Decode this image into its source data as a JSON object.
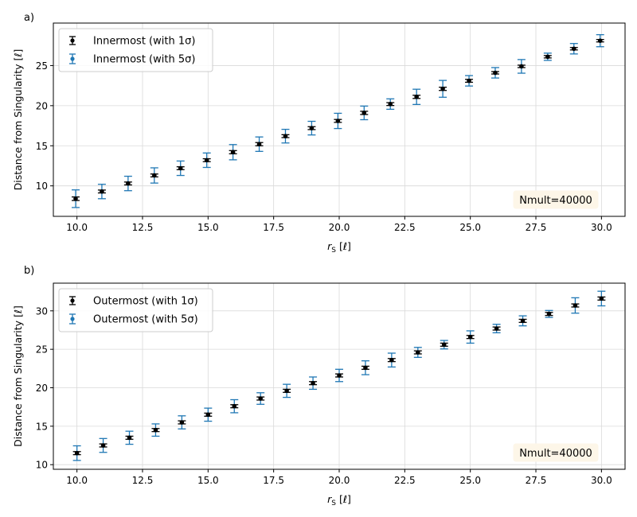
{
  "chart_data": [
    {
      "type": "scatter",
      "panel_label": "a)",
      "xlabel": "r_S [ℓ]",
      "ylabel": "Distance from Singularity [ℓ]",
      "xlim": [
        9.1,
        30.9
      ],
      "ylim": [
        6.2,
        30.3
      ],
      "xticks": [
        10.0,
        12.5,
        15.0,
        17.5,
        20.0,
        22.5,
        25.0,
        27.5,
        30.0
      ],
      "xtick_labels": [
        "10.0",
        "12.5",
        "15.0",
        "17.5",
        "20.0",
        "22.5",
        "25.0",
        "27.5",
        "30.0"
      ],
      "yticks": [
        10,
        15,
        20,
        25
      ],
      "ytick_labels": [
        "10",
        "15",
        "20",
        "25"
      ],
      "grid": true,
      "legend_position": "upper-left",
      "annotation": "Nmult=40000",
      "annotation_position": "lower-right",
      "x": [
        9.95,
        10.95,
        11.95,
        12.95,
        13.95,
        14.95,
        15.95,
        16.95,
        17.95,
        18.95,
        19.95,
        20.95,
        21.95,
        22.95,
        23.95,
        24.95,
        25.95,
        26.95,
        27.95,
        28.95,
        29.95
      ],
      "y": [
        8.4,
        9.3,
        10.3,
        11.3,
        12.2,
        13.2,
        14.2,
        15.2,
        16.2,
        17.2,
        18.1,
        19.1,
        20.2,
        21.1,
        22.1,
        23.1,
        24.1,
        24.9,
        26.1,
        27.1,
        28.1
      ],
      "series": [
        {
          "name": "Innermost (with 1σ)",
          "color": "#000000",
          "yerr": [
            0.22,
            0.18,
            0.18,
            0.18,
            0.18,
            0.18,
            0.2,
            0.2,
            0.18,
            0.18,
            0.18,
            0.2,
            0.18,
            0.2,
            0.2,
            0.18,
            0.15,
            0.15,
            0.15,
            0.15,
            0.15
          ]
        },
        {
          "name": "Innermost (with 5σ)",
          "color": "#1f77b4",
          "yerr": [
            1.1,
            0.9,
            0.9,
            0.95,
            0.9,
            0.9,
            0.95,
            0.9,
            0.85,
            0.85,
            0.95,
            0.85,
            0.65,
            0.95,
            1.05,
            0.65,
            0.65,
            0.85,
            0.45,
            0.65,
            0.75
          ]
        }
      ]
    },
    {
      "type": "scatter",
      "panel_label": "b)",
      "xlabel": "r_S [ℓ]",
      "ylabel": "Distance from Singularity [ℓ]",
      "xlim": [
        9.1,
        30.9
      ],
      "ylim": [
        9.4,
        33.6
      ],
      "xticks": [
        10.0,
        12.5,
        15.0,
        17.5,
        20.0,
        22.5,
        25.0,
        27.5,
        30.0
      ],
      "xtick_labels": [
        "10.0",
        "12.5",
        "15.0",
        "17.5",
        "20.0",
        "22.5",
        "25.0",
        "27.5",
        "30.0"
      ],
      "yticks": [
        10,
        15,
        20,
        25,
        30
      ],
      "ytick_labels": [
        "10",
        "15",
        "20",
        "25",
        "30"
      ],
      "grid": true,
      "legend_position": "upper-left",
      "annotation": "Nmult=40000",
      "annotation_position": "lower-right",
      "x": [
        10.0,
        11.0,
        12.0,
        13.0,
        14.0,
        15.0,
        16.0,
        17.0,
        18.0,
        19.0,
        20.0,
        21.0,
        22.0,
        23.0,
        24.0,
        25.0,
        26.0,
        27.0,
        28.0,
        29.0,
        30.0
      ],
      "y": [
        11.5,
        12.5,
        13.5,
        14.5,
        15.5,
        16.5,
        17.6,
        18.6,
        19.6,
        20.6,
        21.6,
        22.6,
        23.6,
        24.6,
        25.6,
        26.6,
        27.7,
        28.7,
        29.6,
        30.7,
        31.6
      ],
      "series": [
        {
          "name": "Outermost (with 1σ)",
          "color": "#000000",
          "yerr": [
            0.2,
            0.2,
            0.2,
            0.2,
            0.2,
            0.2,
            0.2,
            0.2,
            0.2,
            0.2,
            0.2,
            0.2,
            0.2,
            0.2,
            0.2,
            0.2,
            0.2,
            0.2,
            0.2,
            0.2,
            0.2
          ]
        },
        {
          "name": "Outermost (with 5σ)",
          "color": "#1f77b4",
          "yerr": [
            0.95,
            0.9,
            0.85,
            0.8,
            0.85,
            0.85,
            0.85,
            0.75,
            0.85,
            0.8,
            0.8,
            0.9,
            0.9,
            0.65,
            0.55,
            0.8,
            0.55,
            0.65,
            0.45,
            1.0,
            0.95
          ]
        }
      ]
    }
  ]
}
